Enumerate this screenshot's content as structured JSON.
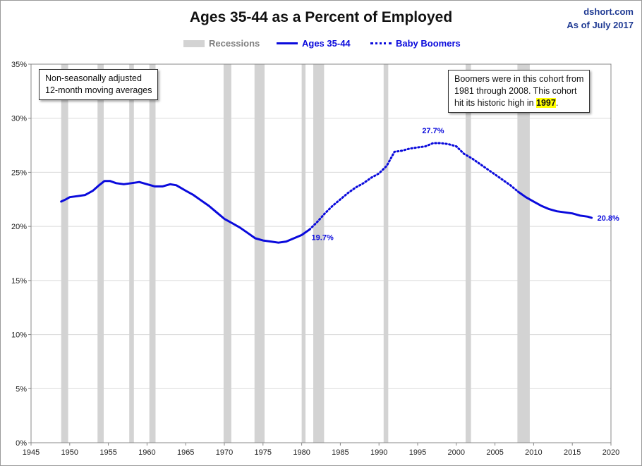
{
  "header": {
    "title": "Ages 35-44 as a Percent of Employed",
    "source_line1": "dshort.com",
    "source_line2": "As of July 2017"
  },
  "legend": {
    "recessions": "Recessions",
    "series_solid": "Ages 35-44",
    "series_dotted": "Baby Boomers"
  },
  "notes": {
    "left_line1": "Non-seasonally adjusted",
    "left_line2": "12-month moving averages",
    "right_line1": "Boomers were in this cohort from",
    "right_line2": "1981  through 2008.  This cohort",
    "right_line3_pre": "hit its historic high in ",
    "right_line3_highlight": "1997",
    "right_line3_post": "."
  },
  "colors": {
    "series": "#0a0adc",
    "recession": "#d3d3d3",
    "grid": "#d9d9d9"
  },
  "chart_data": {
    "type": "line",
    "title": "Ages 35-44 as a Percent of Employed",
    "xlim": [
      1945,
      2020
    ],
    "ylim": [
      0,
      35
    ],
    "x_ticks": [
      1945,
      1950,
      1955,
      1960,
      1965,
      1970,
      1975,
      1980,
      1985,
      1990,
      1995,
      2000,
      2005,
      2010,
      2015,
      2020
    ],
    "y_ticks": [
      0,
      5,
      10,
      15,
      20,
      25,
      30,
      35
    ],
    "y_tick_labels": [
      "0%",
      "5%",
      "10%",
      "15%",
      "20%",
      "25%",
      "30%",
      "35%"
    ],
    "grid": "horizontal",
    "legend_position": "top-center",
    "recessions": [
      [
        1948.9,
        1949.8
      ],
      [
        1953.6,
        1954.4
      ],
      [
        1957.7,
        1958.3
      ],
      [
        1960.3,
        1961.1
      ],
      [
        1969.9,
        1970.9
      ],
      [
        1973.9,
        1975.2
      ],
      [
        1980.0,
        1980.5
      ],
      [
        1981.5,
        1982.9
      ],
      [
        1990.6,
        1991.2
      ],
      [
        2001.2,
        2001.9
      ],
      [
        2007.9,
        2009.5
      ]
    ],
    "series": [
      {
        "name": "Ages 35-44",
        "style": "solid",
        "points": [
          [
            1948.9,
            22.3
          ],
          [
            1949.5,
            22.5
          ],
          [
            1950.0,
            22.7
          ],
          [
            1951.0,
            22.8
          ],
          [
            1952.0,
            22.9
          ],
          [
            1953.0,
            23.3
          ],
          [
            1953.8,
            23.8
          ],
          [
            1954.5,
            24.2
          ],
          [
            1955.2,
            24.2
          ],
          [
            1956.0,
            24.0
          ],
          [
            1957.0,
            23.9
          ],
          [
            1958.0,
            24.0
          ],
          [
            1959.0,
            24.1
          ],
          [
            1960.0,
            23.9
          ],
          [
            1961.0,
            23.7
          ],
          [
            1962.0,
            23.7
          ],
          [
            1963.0,
            23.9
          ],
          [
            1963.8,
            23.8
          ],
          [
            1965.0,
            23.3
          ],
          [
            1966.0,
            22.9
          ],
          [
            1967.0,
            22.4
          ],
          [
            1968.0,
            21.9
          ],
          [
            1969.0,
            21.3
          ],
          [
            1970.0,
            20.7
          ],
          [
            1971.0,
            20.3
          ],
          [
            1972.0,
            19.9
          ],
          [
            1973.0,
            19.4
          ],
          [
            1974.0,
            18.9
          ],
          [
            1975.0,
            18.7
          ],
          [
            1976.0,
            18.6
          ],
          [
            1977.0,
            18.5
          ],
          [
            1978.0,
            18.6
          ],
          [
            1979.0,
            18.9
          ],
          [
            1980.0,
            19.2
          ],
          [
            1981.0,
            19.7
          ]
        ]
      },
      {
        "name": "Baby Boomers",
        "style": "dotted",
        "points": [
          [
            1981.0,
            19.7
          ],
          [
            1982.0,
            20.4
          ],
          [
            1983.0,
            21.2
          ],
          [
            1984.0,
            21.9
          ],
          [
            1985.0,
            22.5
          ],
          [
            1986.0,
            23.1
          ],
          [
            1987.0,
            23.6
          ],
          [
            1988.0,
            24.0
          ],
          [
            1989.0,
            24.5
          ],
          [
            1990.0,
            24.9
          ],
          [
            1991.0,
            25.6
          ],
          [
            1992.0,
            26.9
          ],
          [
            1993.0,
            27.0
          ],
          [
            1994.0,
            27.2
          ],
          [
            1995.0,
            27.3
          ],
          [
            1996.0,
            27.4
          ],
          [
            1997.0,
            27.7
          ],
          [
            1998.0,
            27.7
          ],
          [
            1999.0,
            27.6
          ],
          [
            2000.0,
            27.4
          ],
          [
            2001.0,
            26.7
          ],
          [
            2002.0,
            26.3
          ],
          [
            2003.0,
            25.8
          ],
          [
            2004.0,
            25.3
          ],
          [
            2005.0,
            24.8
          ],
          [
            2006.0,
            24.3
          ],
          [
            2007.0,
            23.8
          ],
          [
            2008.0,
            23.2
          ]
        ]
      },
      {
        "name": "Ages 35-44",
        "style": "solid",
        "points": [
          [
            2008.0,
            23.2
          ],
          [
            2009.0,
            22.7
          ],
          [
            2010.0,
            22.3
          ],
          [
            2011.0,
            21.9
          ],
          [
            2012.0,
            21.6
          ],
          [
            2013.0,
            21.4
          ],
          [
            2014.0,
            21.3
          ],
          [
            2015.0,
            21.2
          ],
          [
            2016.0,
            21.0
          ],
          [
            2017.0,
            20.9
          ],
          [
            2017.5,
            20.8
          ]
        ]
      }
    ],
    "annotations": [
      {
        "text": "19.7%",
        "x": 1981.0,
        "y": 19.7,
        "anchor": "below-right"
      },
      {
        "text": "27.7%",
        "x": 1997.0,
        "y": 27.7,
        "anchor": "above"
      },
      {
        "text": "20.8%",
        "x": 2017.5,
        "y": 20.8,
        "anchor": "right"
      }
    ]
  }
}
